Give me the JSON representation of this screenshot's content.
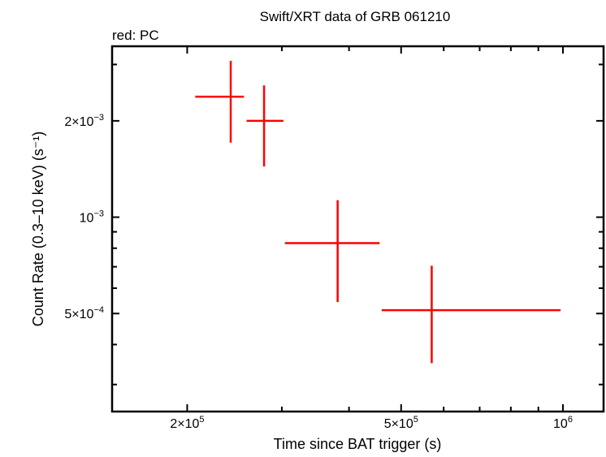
{
  "chart_data": {
    "type": "scatter",
    "title": "Swift/XRT data of GRB 061210",
    "subtitle": "red: PC",
    "xlabel": "Time since BAT trigger (s)",
    "ylabel": "Count Rate (0.3–10 keV) (s⁻¹)",
    "xscale": "log",
    "yscale": "log",
    "xlim": [
      145000,
      1190000
    ],
    "ylim": [
      0.000247,
      0.00342
    ],
    "xticks": [
      {
        "v": 200000,
        "m": "2",
        "e": "5"
      },
      {
        "v": 500000,
        "m": "5",
        "e": "5"
      },
      {
        "v": 1000000,
        "m": "",
        "e": "6"
      }
    ],
    "yticks": [
      {
        "v": 0.002,
        "m": "2",
        "e": "−3"
      },
      {
        "v": 0.001,
        "m": "",
        "e": "−3"
      },
      {
        "v": 0.0005,
        "m": "5",
        "e": "−4"
      }
    ],
    "series": [
      {
        "name": "PC",
        "color": "#ff0000",
        "points": [
          {
            "x": 241000,
            "xlo": 207000,
            "xhi": 255000,
            "y": 0.00238,
            "ylo": 0.00171,
            "yhi": 0.00308
          },
          {
            "x": 278000,
            "xlo": 258000,
            "xhi": 302000,
            "y": 0.002,
            "ylo": 0.00144,
            "yhi": 0.00258
          },
          {
            "x": 381000,
            "xlo": 304000,
            "xhi": 456000,
            "y": 0.00083,
            "ylo": 0.000543,
            "yhi": 0.00113
          },
          {
            "x": 570000,
            "xlo": 460000,
            "xhi": 990000,
            "y": 0.000512,
            "ylo": 0.00035,
            "yhi": 0.000705
          }
        ]
      }
    ]
  }
}
